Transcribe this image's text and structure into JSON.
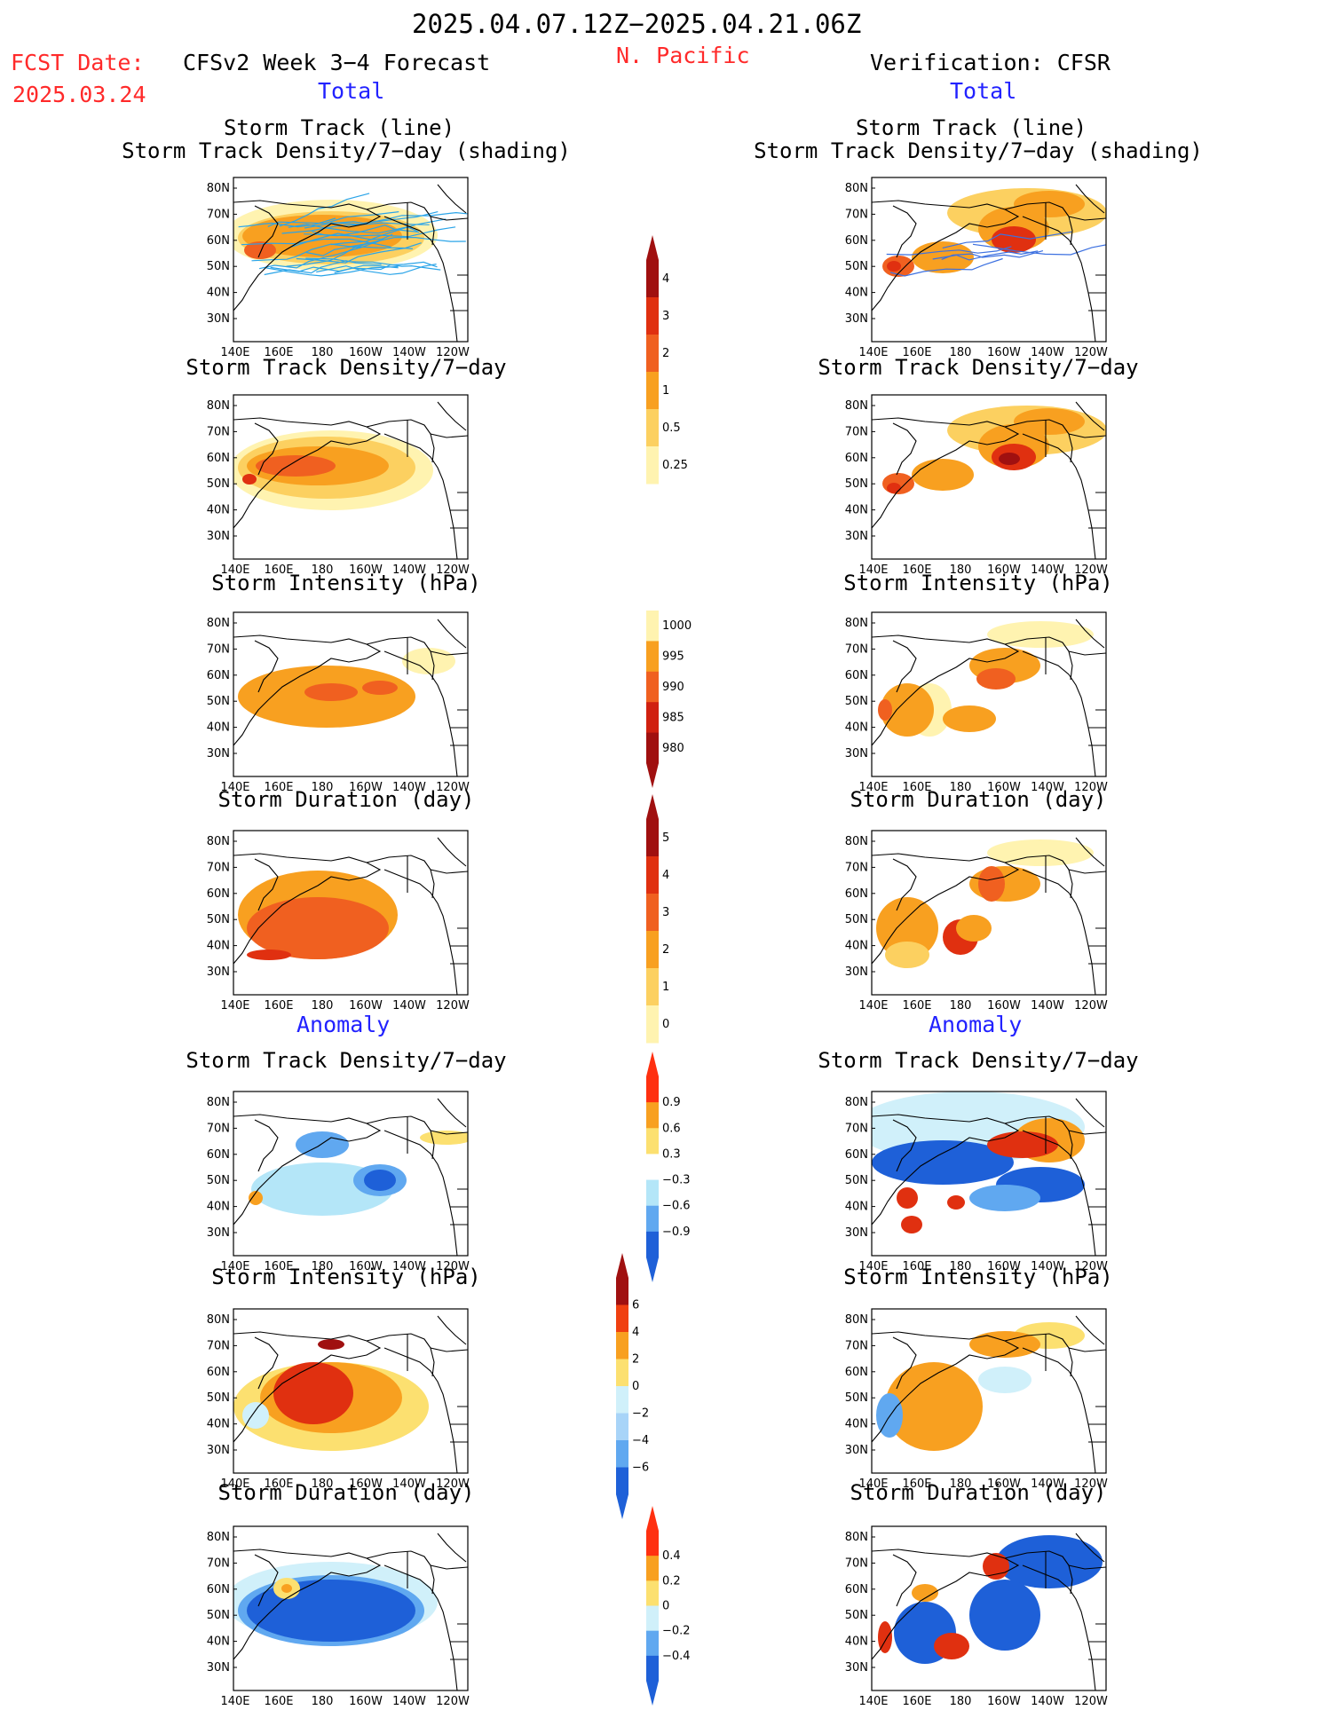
{
  "header": {
    "date_range": "2025.04.07.12Z−2025.04.21.06Z",
    "region": "N. Pacific",
    "fcst_label": "FCST Date:",
    "fcst_date": "2025.03.24",
    "forecast_title": "CFSv2 Week 3−4 Forecast",
    "verification_title": "Verification: CFSR",
    "total_left": "Total",
    "total_right": "Total",
    "anomaly_left": "Anomaly",
    "anomaly_right": "Anomaly"
  },
  "axes": {
    "lat_labels": [
      "80N",
      "70N",
      "60N",
      "50N",
      "40N",
      "30N"
    ],
    "lon_labels": [
      "140E",
      "160E",
      "180",
      "160W",
      "140W",
      "120W"
    ]
  },
  "panels": {
    "left": [
      {
        "title1": "Storm Track (line)",
        "title2": "Storm Track Density/7−day (shading)"
      },
      {
        "title1": "Storm Track Density/7−day",
        "title2": ""
      },
      {
        "title1": "Storm Intensity (hPa)",
        "title2": ""
      },
      {
        "title1": "Storm Duration (day)",
        "title2": ""
      },
      {
        "title1": "Storm Track Density/7−day",
        "title2": ""
      },
      {
        "title1": "Storm Intensity (hPa)",
        "title2": ""
      },
      {
        "title1": "Storm Duration (day)",
        "title2": ""
      }
    ],
    "right": [
      {
        "title1": "Storm Track (line)",
        "title2": "Storm Track Density/7−day (shading)"
      },
      {
        "title1": "Storm Track Density/7−day",
        "title2": ""
      },
      {
        "title1": "Storm Intensity (hPa)",
        "title2": ""
      },
      {
        "title1": "Storm Duration (day)",
        "title2": ""
      },
      {
        "title1": "Storm Track Density/7−day",
        "title2": ""
      },
      {
        "title1": "Storm Intensity (hPa)",
        "title2": ""
      },
      {
        "title1": "Storm Duration (day)",
        "title2": ""
      }
    ]
  },
  "colorbars": [
    {
      "labels": [
        "4",
        "3",
        "2",
        "1",
        "0.5",
        "0.25"
      ],
      "colors": [
        "#a01010",
        "#e03010",
        "#f06020",
        "#f8a020",
        "#fcd060",
        "#fff3b0"
      ],
      "tip_top": "#a01010"
    },
    {
      "labels": [
        "1000",
        "995",
        "990",
        "985",
        "980"
      ],
      "colors": [
        "#fff3b0",
        "#f8a020",
        "#f06020",
        "#d02010",
        "#a01010"
      ],
      "tip_bottom": "#a01010"
    },
    {
      "labels": [
        "5",
        "4",
        "3",
        "2",
        "1",
        "0"
      ],
      "colors": [
        "#a01010",
        "#e03010",
        "#f06020",
        "#f8a020",
        "#fcd060",
        "#fff3b0"
      ],
      "tip_top": "#a01010"
    },
    {
      "labels": [
        "0.9",
        "0.6",
        "0.3",
        "−0.3",
        "−0.6",
        "−0.9"
      ],
      "colors": [
        "#ff3010",
        "#f8a020",
        "#fce070",
        "#ffffff",
        "#b4e6f8",
        "#60a8f0",
        "#1e60d8"
      ],
      "tip_top": "#ff3010",
      "tip_bottom": "#1e60d8"
    },
    {
      "labels": [
        "6",
        "4",
        "2",
        "0",
        "−2",
        "−4",
        "−6"
      ],
      "colors": [
        "#a01010",
        "#f04010",
        "#f8a020",
        "#fce070",
        "#d0f0fa",
        "#a8d4f8",
        "#60a8f0",
        "#1e60d8"
      ],
      "tip_top": "#a01010",
      "tip_bottom": "#1e60d8"
    },
    {
      "labels": [
        "0.4",
        "0.2",
        "0",
        "−0.2",
        "−0.4"
      ],
      "colors": [
        "#ff3010",
        "#f8a020",
        "#fce070",
        "#d0f0fa",
        "#60a8f0",
        "#1e60d8"
      ],
      "tip_top": "#ff3010",
      "tip_bottom": "#1e60d8"
    }
  ]
}
